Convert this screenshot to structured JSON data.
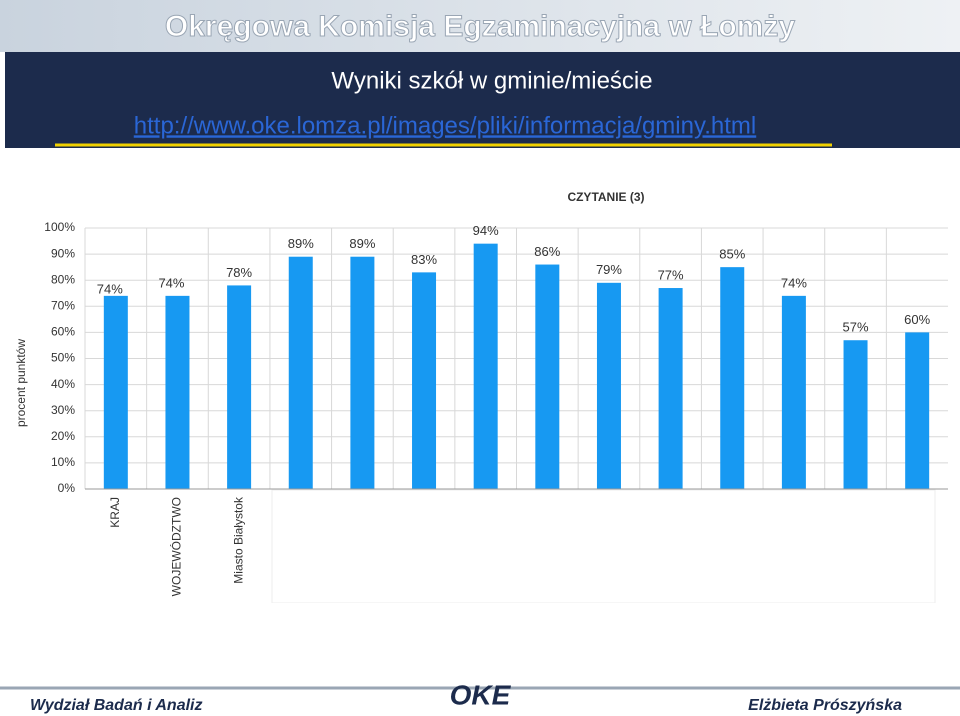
{
  "header": {
    "banner": "Okręgowa Komisja Egzaminacyjna w Łomży",
    "title": "Wyniki szkół w gminie/mieście",
    "link": "http://www.oke.lomza.pl/images/pliki/informacja/gminy.html"
  },
  "chart_data": {
    "type": "bar",
    "title": "CZYTANIE (3)",
    "y_label": "procent punktów",
    "categories": [
      "KRAJ",
      "WOJEWÓDZTWO",
      "Miasto Białystok",
      null,
      null,
      null,
      null,
      null,
      null,
      null,
      null,
      null,
      null,
      null
    ],
    "values": [
      74,
      74,
      78,
      89,
      89,
      83,
      94,
      86,
      79,
      77,
      85,
      74,
      57,
      60
    ],
    "value_labels": [
      "74%",
      "74%",
      "78%",
      "89%",
      "89%",
      "83%",
      "94%",
      "86%",
      "79%",
      "77%",
      "85%",
      "74%",
      "57%",
      "60%"
    ],
    "color": "#1799f2",
    "ylim": [
      0,
      100
    ],
    "yticks": [
      {
        "value": 0,
        "label": "0%"
      },
      {
        "value": 10,
        "label": "10%"
      },
      {
        "value": 20,
        "label": "20%"
      },
      {
        "value": 30,
        "label": "30%"
      },
      {
        "value": 40,
        "label": "40%"
      },
      {
        "value": 50,
        "label": "50%"
      },
      {
        "value": 60,
        "label": "60%"
      },
      {
        "value": 70,
        "label": "70%"
      },
      {
        "value": 80,
        "label": "80%"
      },
      {
        "value": 90,
        "label": "90%"
      },
      {
        "value": 100,
        "label": "100%"
      }
    ],
    "grid": true
  },
  "footer": {
    "left": "Wydział Badań i Analiz",
    "logo": "OKE",
    "right": "Elżbieta Prószyńska"
  }
}
